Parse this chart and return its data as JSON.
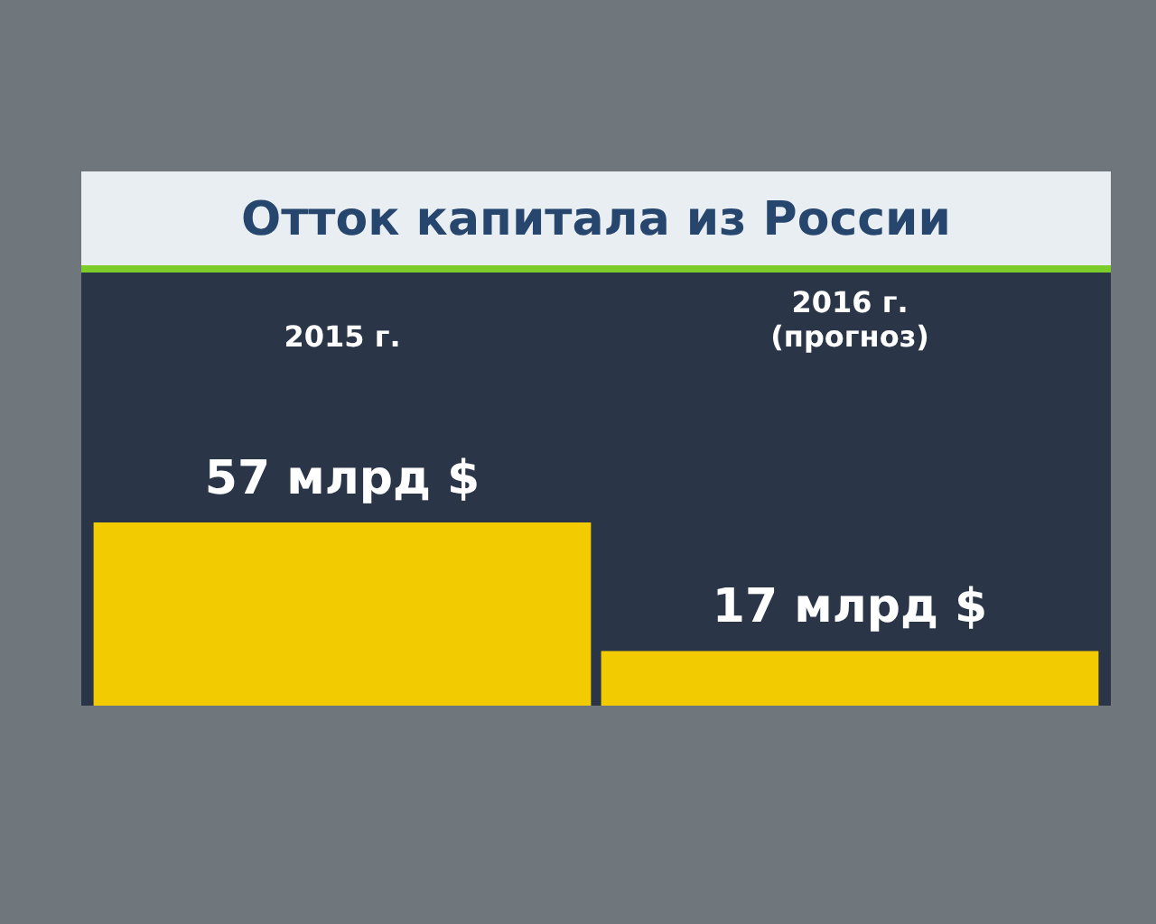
{
  "chart_data": {
    "type": "bar",
    "title": "Отток капитала из России",
    "categories": [
      "2015 г.",
      "2016 г.\n(прогноз)"
    ],
    "values": [
      57,
      17
    ],
    "color": "#f2cc00",
    "value_labels": [
      "57 млрд $",
      "17 млрд $"
    ],
    "grid": false,
    "legend": false
  }
}
